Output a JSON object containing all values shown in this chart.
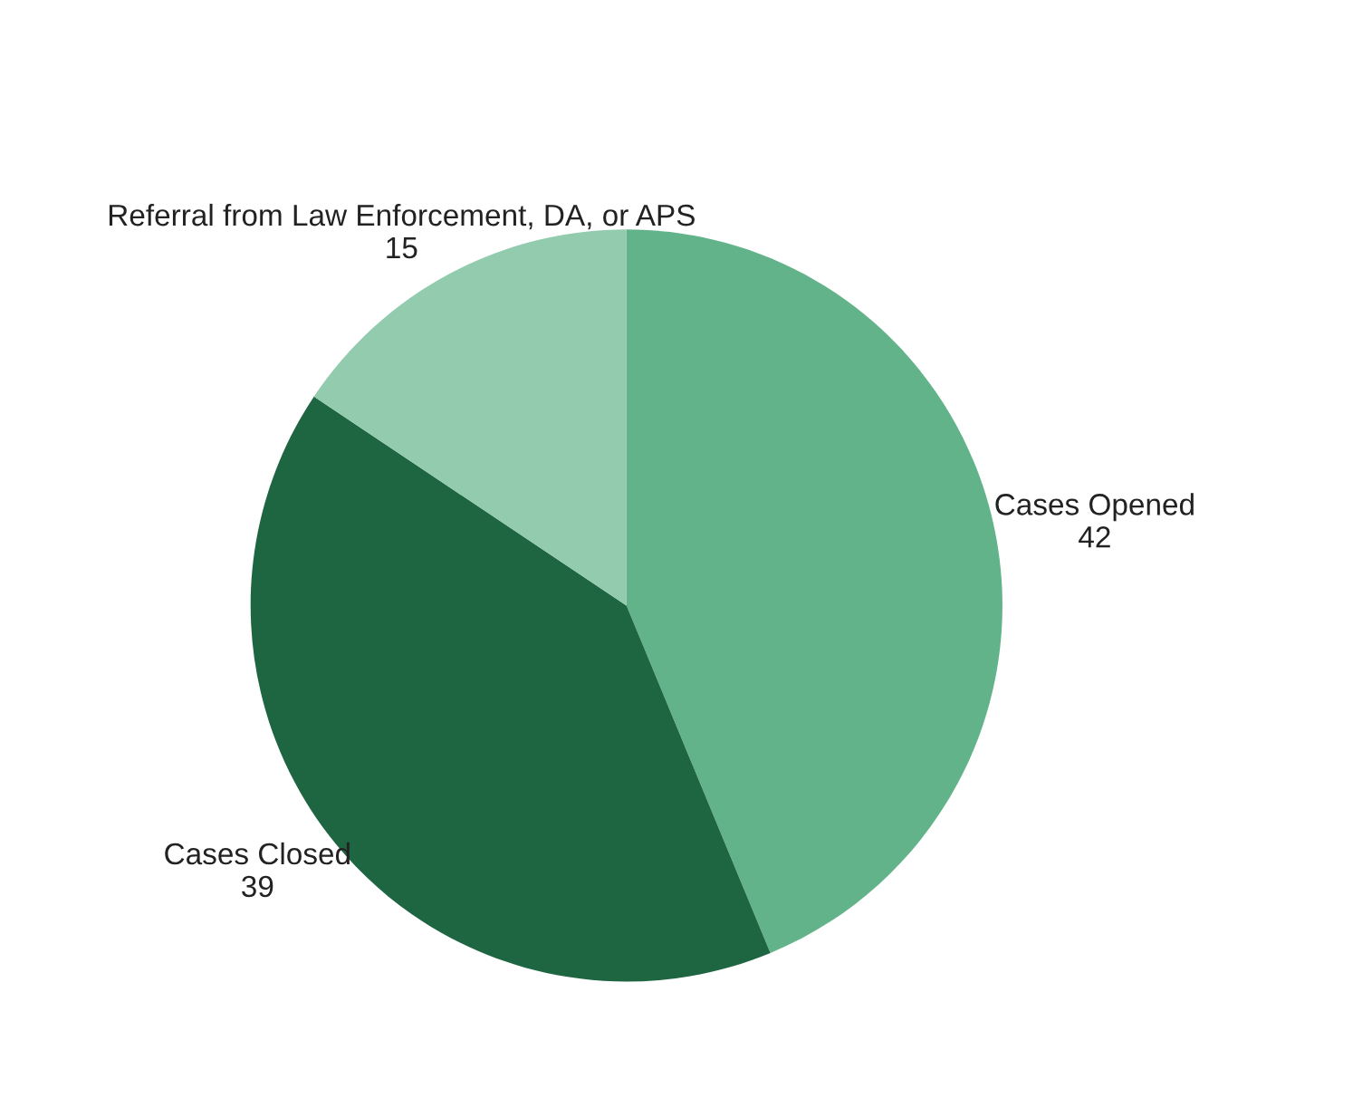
{
  "chart_data": {
    "type": "pie",
    "categories": [
      "Cases Opened",
      "Cases Closed",
      "Referral from Law Enforcement, DA, or APS"
    ],
    "values": [
      42,
      39,
      15
    ],
    "colors": [
      "#63b38a",
      "#1e6641",
      "#92cbad"
    ],
    "data_labels": true
  }
}
